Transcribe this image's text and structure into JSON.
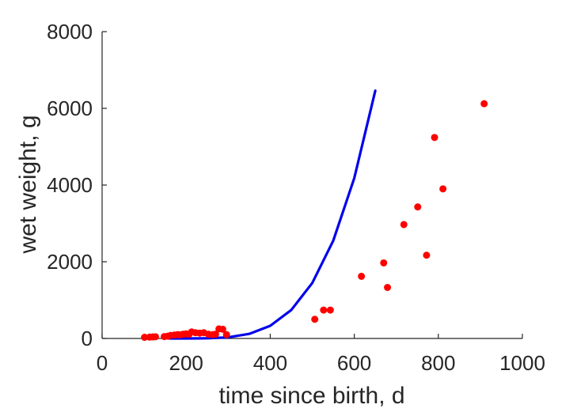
{
  "chart_data": {
    "type": "scatter",
    "xlabel": "time since birth, d",
    "ylabel": "wet weight, g",
    "xlim": [
      0,
      1000
    ],
    "ylim": [
      0,
      8000
    ],
    "xticks": [
      0,
      200,
      400,
      600,
      800,
      1000
    ],
    "yticks": [
      0,
      2000,
      4000,
      6000,
      8000
    ],
    "grid": false,
    "colors": {
      "points": "#ff0000",
      "curve": "#0000ee",
      "axis": "#262626"
    },
    "series": [
      {
        "type": "scatter",
        "points": [
          [
            101,
            30
          ],
          [
            113,
            35
          ],
          [
            121,
            40
          ],
          [
            127,
            45
          ],
          [
            148,
            50
          ],
          [
            156,
            60
          ],
          [
            163,
            80
          ],
          [
            172,
            90
          ],
          [
            180,
            100
          ],
          [
            186,
            95
          ],
          [
            193,
            110
          ],
          [
            200,
            120
          ],
          [
            207,
            110
          ],
          [
            213,
            170
          ],
          [
            222,
            150
          ],
          [
            232,
            140
          ],
          [
            242,
            150
          ],
          [
            253,
            110
          ],
          [
            263,
            100
          ],
          [
            270,
            110
          ],
          [
            278,
            250
          ],
          [
            287,
            240
          ],
          [
            296,
            100
          ],
          [
            506,
            500
          ],
          [
            527,
            740
          ],
          [
            543,
            740
          ],
          [
            617,
            1620
          ],
          [
            670,
            1970
          ],
          [
            679,
            1330
          ],
          [
            718,
            2970
          ],
          [
            751,
            3430
          ],
          [
            772,
            2170
          ],
          [
            791,
            5240
          ],
          [
            811,
            3900
          ],
          [
            909,
            6120
          ]
        ]
      },
      {
        "type": "line",
        "points": [
          [
            160,
            0
          ],
          [
            200,
            0.06
          ],
          [
            250,
            3.6
          ],
          [
            300,
            30
          ],
          [
            350,
            119
          ],
          [
            400,
            330
          ],
          [
            450,
            741
          ],
          [
            500,
            1445
          ],
          [
            550,
            2550
          ],
          [
            600,
            4180
          ],
          [
            650,
            6460
          ]
        ]
      }
    ]
  }
}
